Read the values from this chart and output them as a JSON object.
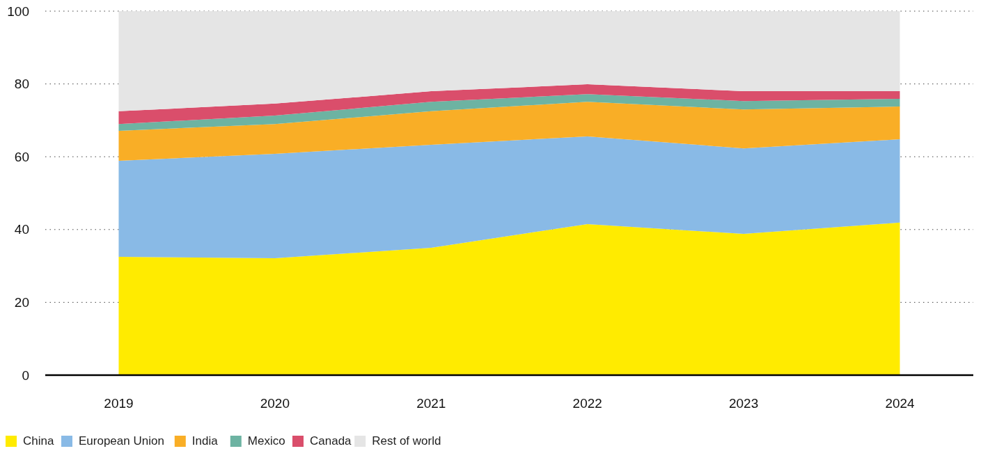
{
  "chart_data": {
    "type": "area",
    "stacked": true,
    "categories": [
      "2019",
      "2020",
      "2021",
      "2022",
      "2023",
      "2024"
    ],
    "series": [
      {
        "name": "China",
        "color": "#ffeb00",
        "values": [
          32.5,
          32.1,
          35.0,
          41.5,
          38.8,
          41.9
        ]
      },
      {
        "name": "European Union",
        "color": "#89bae6",
        "values": [
          26.4,
          28.7,
          28.3,
          24.1,
          23.5,
          22.9
        ]
      },
      {
        "name": "India",
        "color": "#f9ae26",
        "values": [
          8.2,
          8.2,
          9.2,
          9.5,
          10.7,
          9.0
        ]
      },
      {
        "name": "Mexico",
        "color": "#6db3a2",
        "values": [
          1.9,
          2.3,
          2.6,
          2.1,
          2.3,
          2.1
        ]
      },
      {
        "name": "Canada",
        "color": "#da4e6b",
        "values": [
          3.5,
          3.3,
          2.9,
          2.7,
          2.7,
          2.1
        ]
      },
      {
        "name": "Rest of world",
        "color": "#e5e5e5",
        "values": [
          27.5,
          25.4,
          22.0,
          20.1,
          22.0,
          22.0
        ]
      }
    ],
    "ylim": [
      0,
      100
    ],
    "yticks": [
      0,
      20,
      40,
      60,
      80,
      100
    ],
    "grid": "y",
    "legend": "bottom left"
  }
}
